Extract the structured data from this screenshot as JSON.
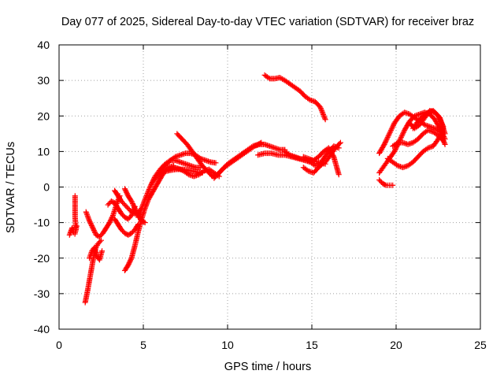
{
  "chart_data": {
    "type": "scatter",
    "title": "Day 077 of 2025, Sidereal Day-to-day VTEC variation (SDTVAR) for receiver braz",
    "xlabel": "GPS time / hours",
    "ylabel": "SDTVAR / TECUs",
    "xlim": [
      0,
      25
    ],
    "ylim": [
      -40,
      40
    ],
    "x_ticks": [
      "0",
      "5",
      "10",
      "15",
      "20",
      "25"
    ],
    "y_ticks": [
      "-40",
      "-30",
      "-20",
      "-10",
      "0",
      "10",
      "20",
      "30",
      "40"
    ],
    "grid": true,
    "marker": "+",
    "color": "#ff0000",
    "series": [
      {
        "x": [
          0.62,
          0.7,
          0.78,
          0.86,
          0.94,
          1.0,
          1.05
        ],
        "y": [
          -13.5,
          -12.5,
          -11.5,
          -12.8,
          -13.2,
          -12.0,
          -11.0
        ]
      },
      {
        "x": [
          0.95,
          0.95,
          0.95,
          0.98,
          1.0
        ],
        "y": [
          -2.5,
          -5.5,
          -8.5,
          -10.5,
          -12.0
        ]
      },
      {
        "x": [
          1.55,
          1.7,
          1.85,
          2.0,
          2.15,
          2.3,
          2.5
        ],
        "y": [
          -32.5,
          -29.0,
          -25.0,
          -21.0,
          -17.5,
          -16.0,
          -15.0
        ]
      },
      {
        "x": [
          1.8,
          1.95,
          2.1,
          2.25,
          2.4,
          2.55
        ],
        "y": [
          -20.0,
          -18.0,
          -17.0,
          -19.5,
          -20.5,
          -18.0
        ]
      },
      {
        "x": [
          1.6,
          1.8,
          2.0,
          2.2,
          2.4,
          2.6,
          2.8,
          3.0,
          3.2,
          3.4,
          3.6
        ],
        "y": [
          -7.0,
          -9.5,
          -11.5,
          -13.5,
          -14.0,
          -13.0,
          -11.5,
          -10.0,
          -8.0,
          -5.0,
          -2.5
        ]
      },
      {
        "x": [
          2.9,
          3.1,
          3.3,
          3.5,
          3.7,
          3.9,
          4.1,
          4.3,
          4.5
        ],
        "y": [
          -5.0,
          -4.0,
          -4.5,
          -6.0,
          -7.5,
          -8.5,
          -9.0,
          -8.0,
          -5.5
        ]
      },
      {
        "x": [
          3.3,
          3.5,
          3.7,
          3.9,
          4.1,
          4.3,
          4.5,
          4.7,
          4.9
        ],
        "y": [
          -1.0,
          -2.5,
          -4.0,
          -5.0,
          -6.0,
          -7.0,
          -7.5,
          -7.0,
          -6.0
        ]
      },
      {
        "x": [
          3.3,
          3.5,
          3.7,
          3.9,
          4.1,
          4.3,
          4.5,
          4.7
        ],
        "y": [
          -9.0,
          -10.5,
          -12.0,
          -13.0,
          -13.5,
          -13.0,
          -12.0,
          -10.5
        ]
      },
      {
        "x": [
          3.9,
          4.1,
          4.3,
          4.5,
          4.7,
          4.9,
          5.1
        ],
        "y": [
          -0.5,
          -2.5,
          -4.0,
          -6.0,
          -8.0,
          -9.5,
          -10.0
        ]
      },
      {
        "x": [
          3.9,
          4.1,
          4.3,
          4.5,
          4.7,
          4.9,
          5.1,
          5.3,
          5.6,
          5.9,
          6.2,
          6.5,
          6.8
        ],
        "y": [
          -23.5,
          -22.0,
          -20.0,
          -16.5,
          -12.5,
          -9.0,
          -6.0,
          -3.5,
          -1.0,
          1.5,
          4.0,
          5.5,
          6.0
        ]
      },
      {
        "x": [
          4.7,
          4.9,
          5.1,
          5.4,
          5.7,
          6.0,
          6.3,
          6.6,
          6.9,
          7.2,
          7.5,
          7.8,
          8.1,
          8.4
        ],
        "y": [
          -8.5,
          -6.0,
          -3.5,
          0.0,
          3.0,
          5.0,
          6.5,
          7.5,
          7.5,
          7.0,
          6.5,
          6.0,
          5.5,
          5.5
        ]
      },
      {
        "x": [
          5.5,
          5.8,
          6.1,
          6.4,
          6.7,
          7.0,
          7.3,
          7.6,
          7.9,
          8.2,
          8.5
        ],
        "y": [
          1.0,
          3.0,
          4.0,
          4.5,
          4.8,
          5.0,
          5.0,
          4.8,
          4.5,
          4.2,
          4.0
        ]
      },
      {
        "x": [
          6.0,
          6.3,
          6.6,
          6.9,
          7.2,
          7.5,
          7.8,
          8.1,
          8.4,
          8.7,
          9.0,
          9.3
        ],
        "y": [
          4.0,
          6.0,
          7.5,
          8.5,
          9.0,
          9.5,
          9.5,
          9.0,
          8.0,
          7.5,
          7.0,
          6.8
        ]
      },
      {
        "x": [
          7.0,
          7.3,
          7.6,
          7.9,
          8.2,
          8.5,
          8.8,
          9.1,
          9.4,
          9.7,
          10.0,
          10.3,
          10.6,
          10.9,
          11.2,
          11.5,
          11.8,
          12.0
        ],
        "y": [
          15.0,
          13.5,
          12.0,
          10.0,
          8.0,
          6.0,
          4.5,
          3.0,
          3.5,
          5.0,
          6.5,
          7.5,
          8.5,
          9.5,
          10.5,
          11.5,
          12.0,
          12.5
        ]
      },
      {
        "x": [
          6.5,
          6.8,
          7.1,
          7.4,
          7.7,
          8.0,
          8.3,
          8.6,
          8.9,
          9.2,
          9.5
        ],
        "y": [
          5.0,
          5.5,
          5.2,
          4.5,
          3.5,
          3.0,
          3.5,
          4.5,
          5.0,
          4.0,
          3.0
        ]
      },
      {
        "x": [
          9.2,
          9.5,
          9.8,
          10.1,
          10.4,
          10.7,
          11.0,
          11.3,
          11.6,
          11.9,
          12.2,
          12.5,
          12.8,
          13.1,
          13.4
        ],
        "y": [
          2.5,
          4.0,
          5.5,
          6.5,
          7.5,
          8.5,
          9.5,
          10.5,
          11.5,
          12.0,
          12.0,
          11.5,
          11.0,
          10.5,
          10.5
        ]
      },
      {
        "x": [
          11.8,
          12.2,
          12.6,
          13.0,
          13.4,
          13.8,
          14.2,
          14.6,
          15.0,
          15.4,
          15.8
        ],
        "y": [
          9.0,
          9.5,
          9.5,
          9.0,
          9.0,
          8.5,
          8.0,
          7.5,
          7.5,
          7.0,
          6.5
        ]
      },
      {
        "x": [
          12.2,
          12.5,
          12.8,
          13.1,
          13.4,
          13.7,
          14.0,
          14.3,
          14.6,
          14.9,
          15.2,
          15.5,
          15.8
        ],
        "y": [
          31.5,
          30.5,
          30.5,
          30.8,
          30.0,
          29.0,
          28.0,
          27.0,
          25.5,
          24.5,
          24.0,
          22.5,
          19.0
        ]
      },
      {
        "x": [
          13.4,
          13.7,
          14.0,
          14.3,
          14.6,
          14.9,
          15.2,
          15.5,
          15.8,
          16.1,
          16.4,
          16.7
        ],
        "y": [
          10.0,
          9.0,
          8.5,
          8.0,
          7.5,
          7.0,
          6.0,
          6.0,
          7.0,
          9.0,
          11.0,
          12.5
        ]
      },
      {
        "x": [
          14.5,
          14.8,
          15.1,
          15.4,
          15.7,
          16.0,
          16.3,
          16.6
        ],
        "y": [
          5.5,
          4.5,
          4.0,
          5.5,
          8.0,
          10.0,
          11.5,
          11.0
        ]
      },
      {
        "x": [
          14.5,
          14.8,
          15.1,
          15.4,
          15.7,
          16.0,
          16.3,
          16.6
        ],
        "y": [
          8.5,
          8.0,
          7.5,
          8.5,
          10.0,
          11.0,
          8.5,
          3.5
        ]
      },
      {
        "x": [
          19.0,
          19.2,
          19.4,
          19.6,
          19.8
        ],
        "y": [
          2.0,
          1.0,
          0.5,
          0.5,
          0.5
        ]
      },
      {
        "x": [
          19.0,
          19.3,
          19.6,
          19.9,
          20.2,
          20.5,
          20.8,
          21.1,
          21.4,
          21.7,
          22.0,
          22.3,
          22.6,
          22.9
        ],
        "y": [
          4.0,
          6.0,
          8.0,
          10.0,
          13.0,
          16.0,
          18.5,
          20.0,
          20.5,
          21.0,
          20.5,
          19.0,
          16.5,
          13.5
        ]
      },
      {
        "x": [
          19.0,
          19.3,
          19.6,
          19.9,
          20.2,
          20.5,
          20.8,
          21.1,
          21.4,
          21.7,
          22.0,
          22.3,
          22.6,
          22.9
        ],
        "y": [
          9.5,
          12.0,
          15.0,
          18.0,
          20.0,
          21.0,
          20.5,
          19.5,
          18.5,
          17.5,
          17.0,
          16.5,
          15.5,
          12.0
        ]
      },
      {
        "x": [
          19.5,
          19.8,
          20.1,
          20.4,
          20.7,
          21.0,
          21.3,
          21.6,
          21.9,
          22.2,
          22.5,
          22.8
        ],
        "y": [
          8.0,
          7.0,
          6.0,
          5.5,
          6.0,
          7.0,
          8.5,
          10.0,
          11.0,
          11.5,
          13.5,
          16.5
        ]
      },
      {
        "x": [
          19.8,
          20.1,
          20.4,
          20.7,
          21.0,
          21.3,
          21.6,
          21.9,
          22.2,
          22.5,
          22.8
        ],
        "y": [
          11.5,
          12.5,
          12.5,
          12.0,
          12.5,
          13.5,
          15.0,
          16.0,
          15.5,
          14.5,
          13.0
        ]
      },
      {
        "x": [
          21.0,
          21.3,
          21.6,
          21.9,
          22.2,
          22.5,
          22.8
        ],
        "y": [
          16.5,
          18.5,
          20.0,
          21.0,
          21.5,
          20.0,
          17.0
        ]
      },
      {
        "x": [
          20.8,
          21.1,
          21.4,
          21.7,
          22.0,
          22.3,
          22.6,
          22.9
        ],
        "y": [
          18.0,
          16.5,
          17.5,
          19.5,
          21.5,
          21.0,
          19.5,
          15.0
        ]
      }
    ]
  }
}
